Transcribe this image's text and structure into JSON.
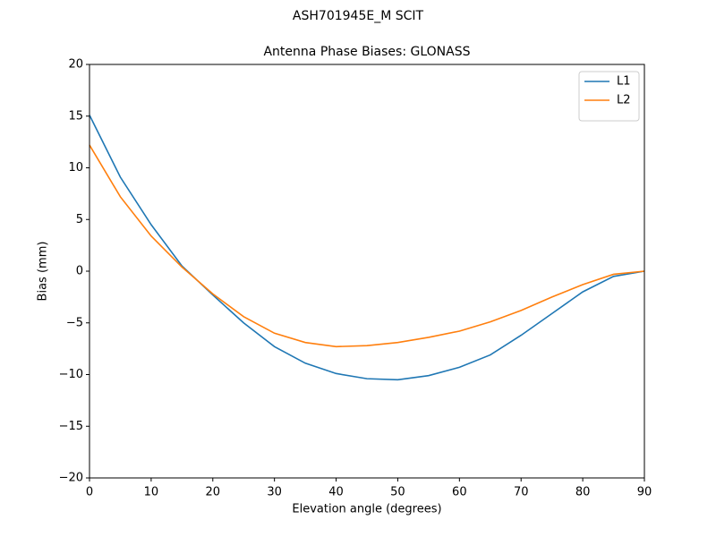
{
  "chart_data": {
    "type": "line",
    "suptitle": "ASH701945E_M    SCIT",
    "title": "Antenna Phase Biases: GLONASS",
    "xlabel": "Elevation angle (degrees)",
    "ylabel": "Bias (mm)",
    "x": [
      0,
      5,
      10,
      15,
      20,
      25,
      30,
      35,
      40,
      45,
      50,
      55,
      60,
      65,
      70,
      75,
      80,
      85,
      90
    ],
    "series": [
      {
        "name": "L1",
        "color": "#1f77b4",
        "values": [
          15.1,
          9.1,
          4.5,
          0.5,
          -2.3,
          -5.0,
          -7.3,
          -8.9,
          -9.9,
          -10.4,
          -10.5,
          -10.1,
          -9.3,
          -8.1,
          -6.2,
          -4.1,
          -2.0,
          -0.5,
          0
        ]
      },
      {
        "name": "L2",
        "color": "#ff7f0e",
        "values": [
          12.2,
          7.2,
          3.4,
          0.4,
          -2.2,
          -4.4,
          -6.0,
          -6.9,
          -7.3,
          -7.2,
          -6.9,
          -6.4,
          -5.8,
          -4.9,
          -3.8,
          -2.5,
          -1.3,
          -0.3,
          0
        ]
      }
    ],
    "xlim": [
      0,
      90
    ],
    "xticks": [
      0,
      10,
      20,
      30,
      40,
      50,
      60,
      70,
      80,
      90
    ],
    "ylim": [
      -20,
      20
    ],
    "yticks": [
      {
        "value": -20,
        "label": "−20"
      },
      {
        "value": -15,
        "label": "−15"
      },
      {
        "value": -10,
        "label": "−10"
      },
      {
        "value": -5,
        "label": "−5"
      },
      0,
      5,
      10,
      15,
      20
    ],
    "legend": "upper right"
  }
}
